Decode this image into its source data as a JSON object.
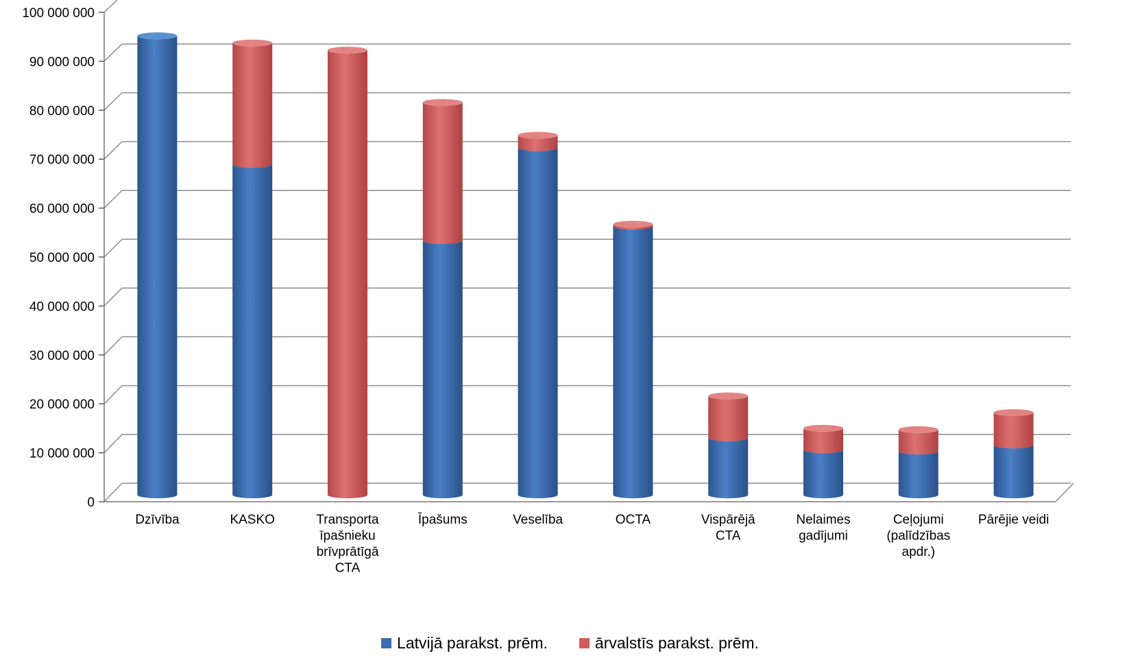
{
  "chart_data": {
    "type": "bar",
    "stacked": true,
    "style_3d": "cylinder",
    "categories": [
      [
        "Dzīvība"
      ],
      [
        "KASKO"
      ],
      [
        "Transporta",
        "īpašnieku",
        "brīvprātīgā",
        "CTA"
      ],
      [
        "Īpašums"
      ],
      [
        "Veselība"
      ],
      [
        "OCTA"
      ],
      [
        "Vispārējā",
        "CTA"
      ],
      [
        "Nelaimes",
        "gadījumi"
      ],
      [
        "Ceļojumi",
        "(palīdzības",
        "apdr.)"
      ],
      [
        "Pārējie veidi"
      ]
    ],
    "series": [
      {
        "name": "Latvijā parakst. prēm.",
        "color": "#3c6db0",
        "values": [
          96500000,
          69500000,
          0,
          53500000,
          73000000,
          56500000,
          12000000,
          9500000,
          9200000,
          10500000
        ]
      },
      {
        "name": "ārvalstīs parakst. prēm.",
        "color": "#cd5b5b",
        "values": [
          0,
          25500000,
          93500000,
          29000000,
          2600000,
          400000,
          8800000,
          4500000,
          4500000,
          6800000
        ]
      }
    ],
    "ylim": [
      0,
      100000000
    ],
    "yticks": [
      "0",
      "10 000 000",
      "20 000 000",
      "30 000 000",
      "40 000 000",
      "50 000 000",
      "60 000 000",
      "70 000 000",
      "80 000 000",
      "90 000 000",
      "100 000 000"
    ],
    "grid": true,
    "legend_position": "bottom"
  }
}
